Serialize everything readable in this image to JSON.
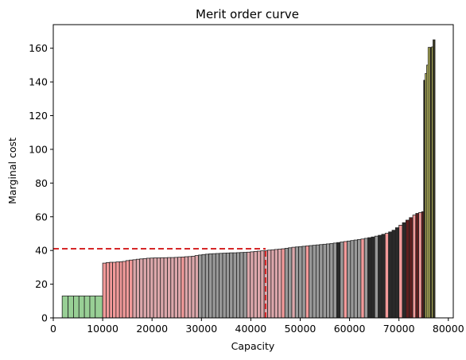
{
  "chart_data": {
    "type": "bar",
    "title": "Merit order curve",
    "xlabel": "Capacity",
    "ylabel": "Marginal cost",
    "xlim": [
      0,
      81000
    ],
    "ylim": [
      0,
      174
    ],
    "xticks": [
      0,
      10000,
      20000,
      30000,
      40000,
      50000,
      60000,
      70000,
      80000
    ],
    "yticks": [
      0,
      20,
      40,
      60,
      80,
      100,
      120,
      140,
      160
    ],
    "xtick_labels": [
      "0",
      "10000",
      "20000",
      "30000",
      "40000",
      "50000",
      "60000",
      "70000",
      "80000"
    ],
    "ytick_labels": [
      "0",
      "20",
      "40",
      "60",
      "80",
      "100",
      "120",
      "140",
      "160"
    ],
    "grid": false,
    "legend": "none",
    "colors": {
      "green": "#98cf95",
      "red": "#f29a9a",
      "pink": "#dca7ab",
      "gray": "#999999",
      "dark": "#2a2a2a",
      "darkred": "#5e1e1e",
      "olive": "#c3c35e",
      "darkolive": "#3b3a22",
      "edge": "#222222",
      "price_line": "#d62728"
    },
    "bars": [
      {
        "x0": 1800,
        "x1": 3000,
        "y": 13,
        "c": "green"
      },
      {
        "x0": 3000,
        "x1": 4100,
        "y": 13,
        "c": "green"
      },
      {
        "x0": 4100,
        "x1": 5200,
        "y": 13,
        "c": "green"
      },
      {
        "x0": 5200,
        "x1": 6300,
        "y": 13,
        "c": "green"
      },
      {
        "x0": 6300,
        "x1": 7400,
        "y": 13,
        "c": "green"
      },
      {
        "x0": 7400,
        "x1": 8500,
        "y": 13,
        "c": "green"
      },
      {
        "x0": 8500,
        "x1": 10000,
        "y": 13,
        "c": "green"
      },
      {
        "x0": 10000,
        "x1": 10700,
        "y": 32.5,
        "c": "red"
      },
      {
        "x0": 10700,
        "x1": 11400,
        "y": 32.8,
        "c": "red"
      },
      {
        "x0": 11400,
        "x1": 12000,
        "y": 33.0,
        "c": "red"
      },
      {
        "x0": 12000,
        "x1": 12700,
        "y": 33.0,
        "c": "red"
      },
      {
        "x0": 12700,
        "x1": 13400,
        "y": 33.2,
        "c": "red"
      },
      {
        "x0": 13400,
        "x1": 14000,
        "y": 33.3,
        "c": "red"
      },
      {
        "x0": 14000,
        "x1": 14700,
        "y": 33.5,
        "c": "red"
      },
      {
        "x0": 14700,
        "x1": 15400,
        "y": 34.0,
        "c": "red"
      },
      {
        "x0": 15400,
        "x1": 16100,
        "y": 34.3,
        "c": "red"
      },
      {
        "x0": 16100,
        "x1": 16800,
        "y": 34.5,
        "c": "pink"
      },
      {
        "x0": 16800,
        "x1": 17500,
        "y": 34.8,
        "c": "pink"
      },
      {
        "x0": 17500,
        "x1": 18200,
        "y": 35.0,
        "c": "pink"
      },
      {
        "x0": 18200,
        "x1": 18900,
        "y": 35.2,
        "c": "pink"
      },
      {
        "x0": 18900,
        "x1": 19600,
        "y": 35.4,
        "c": "pink"
      },
      {
        "x0": 19600,
        "x1": 20300,
        "y": 35.5,
        "c": "pink"
      },
      {
        "x0": 20300,
        "x1": 21000,
        "y": 35.6,
        "c": "pink"
      },
      {
        "x0": 21000,
        "x1": 21700,
        "y": 35.6,
        "c": "pink"
      },
      {
        "x0": 21700,
        "x1": 22400,
        "y": 35.7,
        "c": "pink"
      },
      {
        "x0": 22400,
        "x1": 23100,
        "y": 35.7,
        "c": "pink"
      },
      {
        "x0": 23100,
        "x1": 23800,
        "y": 35.8,
        "c": "pink"
      },
      {
        "x0": 23800,
        "x1": 24500,
        "y": 35.8,
        "c": "pink"
      },
      {
        "x0": 24500,
        "x1": 25200,
        "y": 35.9,
        "c": "pink"
      },
      {
        "x0": 25200,
        "x1": 25900,
        "y": 36.0,
        "c": "pink"
      },
      {
        "x0": 25900,
        "x1": 26600,
        "y": 36.1,
        "c": "red"
      },
      {
        "x0": 26600,
        "x1": 27300,
        "y": 36.3,
        "c": "pink"
      },
      {
        "x0": 27300,
        "x1": 28000,
        "y": 36.4,
        "c": "pink"
      },
      {
        "x0": 28000,
        "x1": 28700,
        "y": 36.6,
        "c": "pink"
      },
      {
        "x0": 28700,
        "x1": 29400,
        "y": 37.0,
        "c": "pink"
      },
      {
        "x0": 29400,
        "x1": 30100,
        "y": 37.3,
        "c": "gray"
      },
      {
        "x0": 30100,
        "x1": 30800,
        "y": 37.6,
        "c": "gray"
      },
      {
        "x0": 30800,
        "x1": 31500,
        "y": 37.8,
        "c": "gray"
      },
      {
        "x0": 31500,
        "x1": 32200,
        "y": 38.0,
        "c": "gray"
      },
      {
        "x0": 32200,
        "x1": 32900,
        "y": 38.1,
        "c": "gray"
      },
      {
        "x0": 32900,
        "x1": 33600,
        "y": 38.2,
        "c": "gray"
      },
      {
        "x0": 33600,
        "x1": 34300,
        "y": 38.3,
        "c": "gray"
      },
      {
        "x0": 34300,
        "x1": 35000,
        "y": 38.4,
        "c": "gray"
      },
      {
        "x0": 35000,
        "x1": 35700,
        "y": 38.5,
        "c": "gray"
      },
      {
        "x0": 35700,
        "x1": 36400,
        "y": 38.6,
        "c": "gray"
      },
      {
        "x0": 36400,
        "x1": 37100,
        "y": 38.6,
        "c": "gray"
      },
      {
        "x0": 37100,
        "x1": 37800,
        "y": 38.7,
        "c": "gray"
      },
      {
        "x0": 37800,
        "x1": 38500,
        "y": 38.8,
        "c": "gray"
      },
      {
        "x0": 38500,
        "x1": 39200,
        "y": 38.9,
        "c": "gray"
      },
      {
        "x0": 39200,
        "x1": 39900,
        "y": 39.0,
        "c": "pink"
      },
      {
        "x0": 39900,
        "x1": 40600,
        "y": 39.2,
        "c": "pink"
      },
      {
        "x0": 40600,
        "x1": 41300,
        "y": 39.4,
        "c": "pink"
      },
      {
        "x0": 41300,
        "x1": 42000,
        "y": 39.6,
        "c": "pink"
      },
      {
        "x0": 42000,
        "x1": 42700,
        "y": 39.8,
        "c": "pink"
      },
      {
        "x0": 42700,
        "x1": 43400,
        "y": 40.0,
        "c": "pink"
      },
      {
        "x0": 43400,
        "x1": 44100,
        "y": 40.2,
        "c": "pink"
      },
      {
        "x0": 44100,
        "x1": 44800,
        "y": 40.4,
        "c": "pink"
      },
      {
        "x0": 44800,
        "x1": 45500,
        "y": 40.6,
        "c": "pink"
      },
      {
        "x0": 45500,
        "x1": 46200,
        "y": 40.8,
        "c": "pink"
      },
      {
        "x0": 46200,
        "x1": 46900,
        "y": 41.0,
        "c": "red"
      },
      {
        "x0": 46900,
        "x1": 47600,
        "y": 41.3,
        "c": "gray"
      },
      {
        "x0": 47600,
        "x1": 48300,
        "y": 41.6,
        "c": "gray"
      },
      {
        "x0": 48300,
        "x1": 49000,
        "y": 41.9,
        "c": "pink"
      },
      {
        "x0": 49000,
        "x1": 49700,
        "y": 42.1,
        "c": "gray"
      },
      {
        "x0": 49700,
        "x1": 50400,
        "y": 42.3,
        "c": "gray"
      },
      {
        "x0": 50400,
        "x1": 51100,
        "y": 42.5,
        "c": "gray"
      },
      {
        "x0": 51100,
        "x1": 51800,
        "y": 42.7,
        "c": "red"
      },
      {
        "x0": 51800,
        "x1": 52500,
        "y": 42.9,
        "c": "gray"
      },
      {
        "x0": 52500,
        "x1": 53200,
        "y": 43.1,
        "c": "gray"
      },
      {
        "x0": 53200,
        "x1": 53900,
        "y": 43.3,
        "c": "gray"
      },
      {
        "x0": 53900,
        "x1": 54600,
        "y": 43.5,
        "c": "gray"
      },
      {
        "x0": 54600,
        "x1": 55300,
        "y": 43.7,
        "c": "gray"
      },
      {
        "x0": 55300,
        "x1": 56000,
        "y": 43.9,
        "c": "gray"
      },
      {
        "x0": 56000,
        "x1": 56700,
        "y": 44.1,
        "c": "gray"
      },
      {
        "x0": 56700,
        "x1": 57400,
        "y": 44.4,
        "c": "gray"
      },
      {
        "x0": 57400,
        "x1": 58100,
        "y": 44.7,
        "c": "dark"
      },
      {
        "x0": 58100,
        "x1": 58800,
        "y": 45.0,
        "c": "gray"
      },
      {
        "x0": 58800,
        "x1": 59500,
        "y": 45.3,
        "c": "red"
      },
      {
        "x0": 59500,
        "x1": 60200,
        "y": 45.6,
        "c": "gray"
      },
      {
        "x0": 60200,
        "x1": 60900,
        "y": 45.9,
        "c": "gray"
      },
      {
        "x0": 60900,
        "x1": 61600,
        "y": 46.2,
        "c": "gray"
      },
      {
        "x0": 61600,
        "x1": 62300,
        "y": 46.5,
        "c": "gray"
      },
      {
        "x0": 62300,
        "x1": 63000,
        "y": 46.8,
        "c": "red"
      },
      {
        "x0": 63000,
        "x1": 63700,
        "y": 47.2,
        "c": "gray"
      },
      {
        "x0": 63700,
        "x1": 64400,
        "y": 47.6,
        "c": "dark"
      },
      {
        "x0": 64400,
        "x1": 65100,
        "y": 48.0,
        "c": "dark"
      },
      {
        "x0": 65100,
        "x1": 65800,
        "y": 48.5,
        "c": "gray"
      },
      {
        "x0": 65800,
        "x1": 66500,
        "y": 49.0,
        "c": "dark"
      },
      {
        "x0": 66500,
        "x1": 67200,
        "y": 49.6,
        "c": "dark"
      },
      {
        "x0": 67200,
        "x1": 67900,
        "y": 50.2,
        "c": "red"
      },
      {
        "x0": 67900,
        "x1": 68600,
        "y": 51.0,
        "c": "dark"
      },
      {
        "x0": 68600,
        "x1": 69300,
        "y": 52.0,
        "c": "dark"
      },
      {
        "x0": 69300,
        "x1": 70000,
        "y": 53.5,
        "c": "dark"
      },
      {
        "x0": 70000,
        "x1": 70700,
        "y": 55.0,
        "c": "red"
      },
      {
        "x0": 70700,
        "x1": 71400,
        "y": 56.5,
        "c": "dark"
      },
      {
        "x0": 71400,
        "x1": 72100,
        "y": 58.0,
        "c": "darkred"
      },
      {
        "x0": 72100,
        "x1": 72800,
        "y": 59.5,
        "c": "darkred"
      },
      {
        "x0": 72800,
        "x1": 73400,
        "y": 61.0,
        "c": "red"
      },
      {
        "x0": 73400,
        "x1": 74000,
        "y": 62.0,
        "c": "darkred"
      },
      {
        "x0": 74000,
        "x1": 74600,
        "y": 62.5,
        "c": "red"
      },
      {
        "x0": 74600,
        "x1": 75000,
        "y": 63.0,
        "c": "darkred"
      },
      {
        "x0": 75000,
        "x1": 75300,
        "y": 141.0,
        "c": "darkolive"
      },
      {
        "x0": 75300,
        "x1": 75600,
        "y": 145.0,
        "c": "olive"
      },
      {
        "x0": 75600,
        "x1": 75900,
        "y": 150.0,
        "c": "olive"
      },
      {
        "x0": 75900,
        "x1": 76300,
        "y": 160.5,
        "c": "olive"
      },
      {
        "x0": 76300,
        "x1": 76600,
        "y": 160.5,
        "c": "darkolive"
      },
      {
        "x0": 76600,
        "x1": 76900,
        "y": 160.8,
        "c": "olive"
      },
      {
        "x0": 76900,
        "x1": 77300,
        "y": 165.0,
        "c": "darkolive"
      }
    ],
    "price_line": {
      "capacity": 43000,
      "cost": 41
    }
  }
}
